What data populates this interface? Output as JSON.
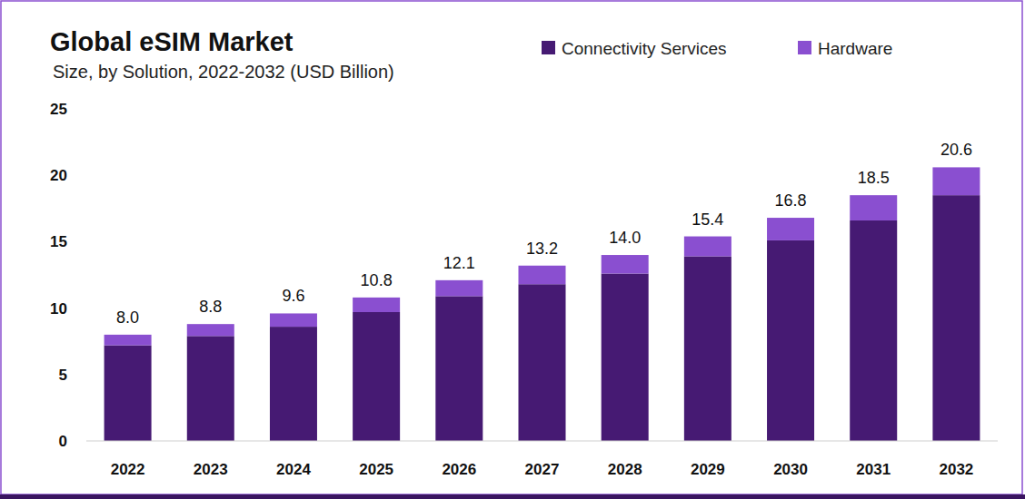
{
  "chart_data": {
    "type": "bar",
    "stacked": true,
    "grid": false,
    "legend": "top",
    "title": "Global eSIM Market",
    "subtitle": "Size, by Solution, 2022-2032 (USD Billion)",
    "categories": [
      "2022",
      "2023",
      "2024",
      "2025",
      "2026",
      "2027",
      "2028",
      "2029",
      "2030",
      "2031",
      "2032"
    ],
    "series": [
      {
        "name": "Connectivity Services",
        "color": "#461a73",
        "values": [
          7.2,
          7.9,
          8.6,
          9.7,
          10.9,
          11.8,
          12.6,
          13.9,
          15.1,
          16.6,
          18.5
        ]
      },
      {
        "name": "Hardware",
        "color": "#8a4fd0",
        "values": [
          0.8,
          0.9,
          1.0,
          1.1,
          1.2,
          1.4,
          1.4,
          1.5,
          1.7,
          1.9,
          2.1
        ]
      }
    ],
    "totals": [
      8.0,
      8.8,
      9.6,
      10.8,
      12.1,
      13.2,
      14.0,
      15.4,
      16.8,
      18.5,
      20.6
    ],
    "total_labels": [
      "8.0",
      "8.8",
      "9.6",
      "10.8",
      "12.1",
      "13.2",
      "14.0",
      "15.4",
      "16.8",
      "18.5",
      "20.6"
    ],
    "ylim": [
      0,
      25
    ],
    "yticks": [
      0,
      5,
      10,
      15,
      20,
      25
    ]
  }
}
